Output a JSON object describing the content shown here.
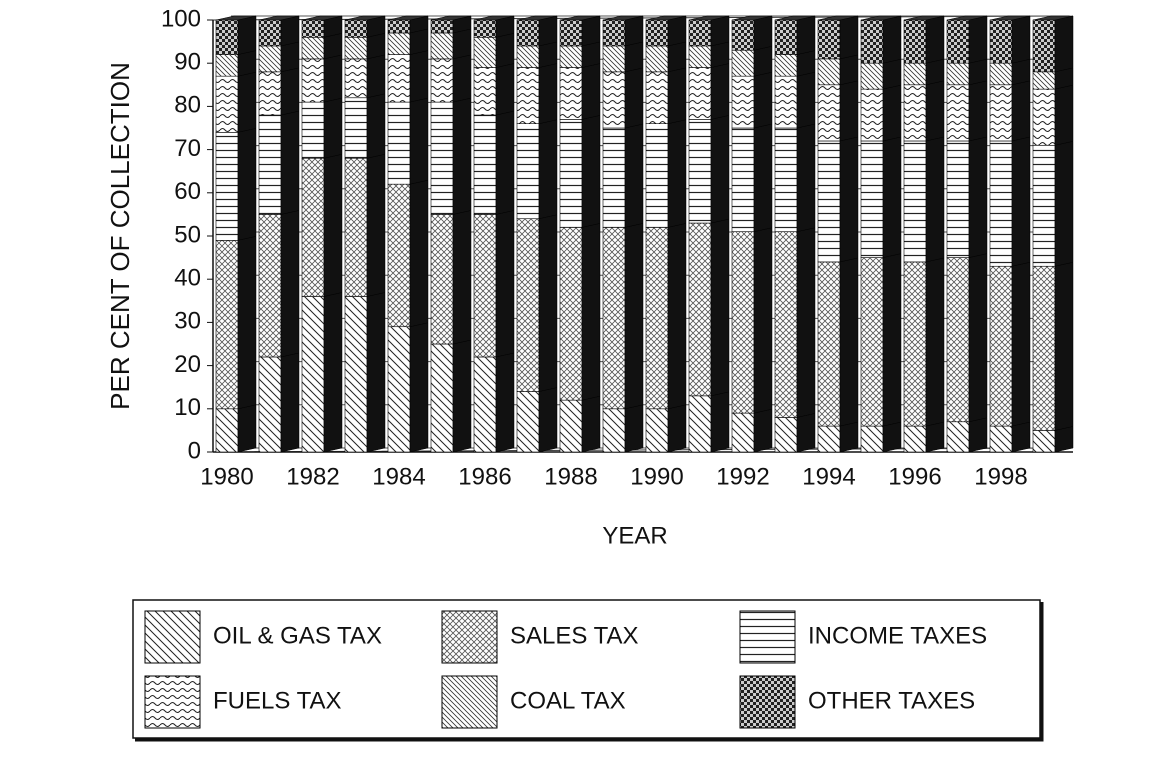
{
  "chart_data": {
    "type": "bar",
    "stacked": true,
    "xlabel": "YEAR",
    "ylabel": "PER CENT OF COLLECTION",
    "categories": [
      "1980",
      null,
      "1982",
      null,
      "1984",
      null,
      "1986",
      null,
      "1988",
      null,
      "1990",
      null,
      "1992",
      null,
      "1994",
      null,
      "1996",
      null,
      "1998",
      null
    ],
    "ylim": [
      0,
      100
    ],
    "yticks": [
      0,
      10,
      20,
      30,
      40,
      50,
      60,
      70,
      80,
      90,
      100
    ],
    "grid": true,
    "series": [
      {
        "name": "OIL & GAS TAX",
        "color": "#000000",
        "values": [
          10,
          22,
          36,
          36,
          29,
          25,
          22,
          14,
          12,
          10,
          10,
          13,
          9,
          8,
          6,
          6,
          6,
          7,
          6,
          5
        ]
      },
      {
        "name": "SALES TAX",
        "color": "#000000",
        "values": [
          39,
          33,
          32,
          32,
          33,
          30,
          33,
          40,
          40,
          42,
          42,
          40,
          42,
          43,
          38,
          39,
          38,
          38,
          37,
          38
        ]
      },
      {
        "name": "INCOME TAXES",
        "color": "#000000",
        "values": [
          25,
          23,
          13,
          14,
          19,
          26,
          23,
          22,
          25,
          23,
          24,
          24,
          24,
          24,
          28,
          27,
          28,
          27,
          29,
          28
        ]
      },
      {
        "name": "FUELS TAX",
        "color": "#000000",
        "values": [
          13,
          10,
          10,
          9,
          11,
          10,
          11,
          13,
          12,
          13,
          12,
          12,
          12,
          12,
          13,
          12,
          13,
          13,
          13,
          13
        ]
      },
      {
        "name": "COAL TAX",
        "color": "#000000",
        "values": [
          5,
          6,
          5,
          5,
          5,
          6,
          7,
          5,
          5,
          6,
          6,
          5,
          6,
          5,
          6,
          6,
          5,
          5,
          5,
          4
        ]
      },
      {
        "name": "OTHER TAXES",
        "color": "#000000",
        "values": [
          8,
          6,
          4,
          4,
          3,
          3,
          4,
          6,
          6,
          6,
          6,
          6,
          7,
          8,
          9,
          10,
          10,
          10,
          10,
          12
        ]
      }
    ]
  }
}
